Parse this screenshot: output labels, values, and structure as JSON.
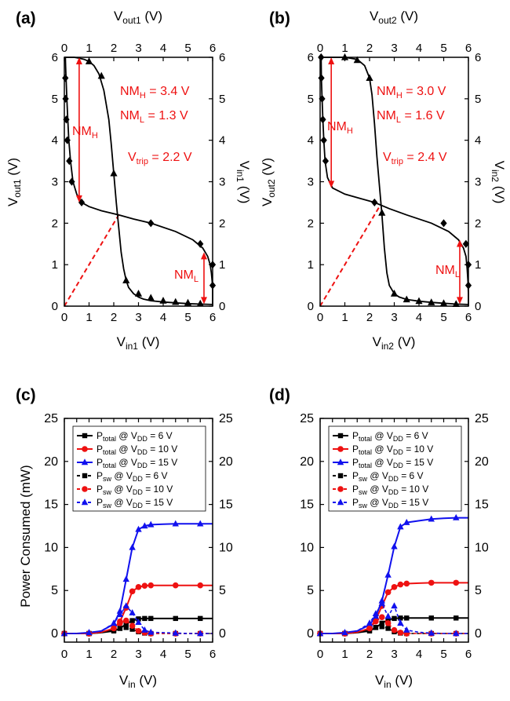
{
  "chart_data": [
    {
      "panel": "(a)",
      "type": "line",
      "xlabel": "V_in1 (V)",
      "ylabel": "V_out1 (V)",
      "top_label": "V_out1 (V)",
      "right_label": "V_in1 (V)",
      "xlim": [
        0,
        6
      ],
      "ylim": [
        0,
        6
      ],
      "ticks": [
        0,
        1,
        2,
        3,
        4,
        5,
        6
      ],
      "series": [
        {
          "role": "VTC, V_out1 vs V_in1 (triangle markers)",
          "x": [
            0.0,
            0.2,
            0.4,
            0.6,
            0.8,
            1.0,
            1.2,
            1.4,
            1.6,
            1.8,
            1.9,
            2.0,
            2.1,
            2.2,
            2.3,
            2.4,
            2.5,
            2.6,
            2.8,
            3.0,
            3.2,
            3.5,
            4.0,
            4.5,
            5.0,
            5.5,
            6.0
          ],
          "y": [
            6.0,
            6.0,
            6.0,
            5.98,
            5.95,
            5.9,
            5.8,
            5.6,
            5.2,
            4.5,
            3.9,
            3.2,
            2.5,
            1.9,
            1.3,
            0.9,
            0.62,
            0.45,
            0.3,
            0.22,
            0.17,
            0.13,
            0.1,
            0.08,
            0.06,
            0.05,
            0.04
          ],
          "markers_x": [
            1.0,
            1.5,
            2.0,
            2.5,
            3.0,
            3.5,
            4.0,
            4.5,
            5.0,
            5.5
          ],
          "markers_y": [
            5.9,
            5.55,
            3.2,
            0.62,
            0.3,
            0.2,
            0.13,
            0.1,
            0.08,
            0.06
          ]
        },
        {
          "role": "mirrored VTC (diamond markers)",
          "x": [
            6.0,
            6.0,
            6.0,
            5.98,
            5.95,
            5.9,
            5.8,
            5.6,
            5.2,
            4.5,
            3.5,
            2.8,
            2.2,
            1.5,
            1.0,
            0.7,
            0.5,
            0.35,
            0.25,
            0.18,
            0.14,
            0.1,
            0.07,
            0.05,
            0.04
          ],
          "y": [
            0.0,
            0.2,
            0.4,
            0.6,
            0.8,
            1.0,
            1.2,
            1.4,
            1.6,
            1.8,
            2.0,
            2.1,
            2.2,
            2.3,
            2.4,
            2.5,
            2.7,
            3.0,
            3.5,
            4.0,
            4.5,
            5.0,
            5.5,
            5.8,
            6.0
          ],
          "markers_x": [
            6.0,
            6.0,
            5.5,
            3.5,
            0.7,
            0.3,
            0.2,
            0.12,
            0.08,
            0.05,
            0.04
          ],
          "markers_y": [
            0.5,
            1.0,
            1.5,
            2.0,
            2.5,
            3.0,
            3.5,
            4.0,
            4.5,
            5.0,
            5.5
          ]
        }
      ],
      "trip_line": {
        "x": [
          0,
          2.2
        ],
        "y": [
          0,
          2.2
        ]
      },
      "nmh_arrow": {
        "x": 0.6,
        "y": [
          2.5,
          6.0
        ]
      },
      "nml_arrow": {
        "x": 5.65,
        "y": [
          0.05,
          1.3
        ]
      },
      "annotations": {
        "nmh": {
          "main": "NM",
          "sub": "H",
          "value": " = 3.4 V"
        },
        "nml": {
          "main": "NM",
          "sub": "L",
          "value": " = 1.3 V"
        },
        "trip": {
          "main": "V",
          "sub": "trip",
          "value": " = 2.2 V"
        },
        "nmh_tag": {
          "main": "NM",
          "sub": "H"
        },
        "nml_tag": {
          "main": "NM",
          "sub": "L"
        }
      }
    },
    {
      "panel": "(b)",
      "type": "line",
      "xlabel": "V_in2 (V)",
      "ylabel": "V_out2 (V)",
      "top_label": "V_out2 (V)",
      "right_label": "V_in2 (V)",
      "xlim": [
        0,
        6
      ],
      "ylim": [
        0,
        6
      ],
      "ticks": [
        0,
        1,
        2,
        3,
        4,
        5,
        6
      ],
      "series": [
        {
          "role": "VTC, V_out2 vs V_in2 (triangle markers)",
          "x": [
            0.0,
            0.5,
            1.0,
            1.5,
            1.8,
            2.0,
            2.1,
            2.2,
            2.3,
            2.4,
            2.5,
            2.6,
            2.7,
            2.8,
            3.0,
            3.2,
            3.5,
            4.0,
            4.5,
            5.0,
            5.5,
            6.0
          ],
          "y": [
            6.0,
            6.0,
            6.0,
            5.95,
            5.8,
            5.5,
            5.1,
            4.4,
            3.6,
            2.9,
            2.2,
            1.4,
            0.8,
            0.5,
            0.3,
            0.22,
            0.16,
            0.12,
            0.09,
            0.07,
            0.05,
            0.04
          ],
          "markers_x": [
            1.0,
            1.5,
            2.0,
            2.5,
            3.0,
            3.5,
            4.0,
            4.5,
            5.0,
            5.5
          ],
          "markers_y": [
            6.0,
            5.93,
            5.5,
            2.25,
            0.3,
            0.16,
            0.12,
            0.09,
            0.07,
            0.05
          ]
        },
        {
          "role": "mirrored VTC (diamond markers)",
          "x": [
            6.0,
            6.0,
            5.98,
            5.95,
            5.9,
            5.8,
            5.6,
            5.2,
            4.5,
            3.5,
            2.8,
            2.2,
            1.6,
            1.0,
            0.5,
            0.3,
            0.2,
            0.15,
            0.11,
            0.08,
            0.05,
            0.04
          ],
          "y": [
            0.0,
            0.3,
            0.6,
            0.9,
            1.2,
            1.4,
            1.6,
            1.8,
            2.0,
            2.2,
            2.35,
            2.5,
            2.6,
            2.7,
            2.85,
            3.1,
            3.5,
            4.0,
            4.5,
            5.0,
            5.5,
            6.0
          ],
          "markers_x": [
            6.0,
            6.0,
            5.9,
            5.0,
            2.2,
            0.22,
            0.15,
            0.11,
            0.08,
            0.05,
            0.04
          ],
          "markers_y": [
            0.5,
            1.0,
            1.5,
            2.0,
            2.5,
            3.5,
            4.0,
            4.5,
            5.0,
            5.5,
            6.0
          ]
        }
      ],
      "trip_line": {
        "x": [
          0,
          2.4
        ],
        "y": [
          0,
          2.4
        ]
      },
      "nmh_arrow": {
        "x": 0.45,
        "y": [
          2.85,
          6.0
        ]
      },
      "nml_arrow": {
        "x": 5.65,
        "y": [
          0.05,
          1.6
        ]
      },
      "annotations": {
        "nmh": {
          "main": "NM",
          "sub": "H",
          "value": " = 3.0 V"
        },
        "nml": {
          "main": "NM",
          "sub": "L",
          "value": " = 1.6 V"
        },
        "trip": {
          "main": "V",
          "sub": "trip",
          "value": " = 2.4 V"
        },
        "nmh_tag": {
          "main": "NM",
          "sub": "H"
        },
        "nml_tag": {
          "main": "NM",
          "sub": "L"
        }
      }
    },
    {
      "panel": "(c)",
      "type": "line",
      "xlabel": "V_in (V)",
      "ylabel": "Power Consumed (mW)",
      "xlim": [
        0,
        6
      ],
      "ylim": [
        -1,
        25
      ],
      "xticks": [
        0,
        0.5,
        1,
        1.5,
        2,
        2.5,
        3,
        3.5,
        4,
        4.5,
        5,
        5.5,
        6
      ],
      "xticklabels": [
        "0",
        "",
        "1",
        "",
        "2",
        "",
        "3",
        "",
        "4",
        "",
        "5",
        "",
        "6"
      ],
      "yticks": [
        0,
        5,
        10,
        15,
        20,
        25
      ],
      "x": [
        0,
        0.5,
        1.0,
        1.5,
        2.0,
        2.25,
        2.5,
        2.75,
        3.0,
        3.25,
        3.5,
        4.0,
        4.5,
        5.0,
        5.5,
        6.0
      ],
      "series": [
        {
          "name": "P_total @ V_DD = 6 V",
          "color": "#000000",
          "marker": "square",
          "dash": false,
          "values": [
            0,
            0,
            0,
            0.1,
            0.3,
            0.6,
            1.1,
            1.5,
            1.7,
            1.75,
            1.75,
            1.75,
            1.75,
            1.75,
            1.75,
            1.75
          ]
        },
        {
          "name": "P_total @ V_DD = 10 V",
          "color": "#ee1111",
          "marker": "circle",
          "dash": false,
          "values": [
            0,
            0,
            0,
            0.15,
            0.6,
            1.4,
            3.0,
            4.9,
            5.4,
            5.55,
            5.6,
            5.6,
            5.6,
            5.6,
            5.6,
            5.6
          ]
        },
        {
          "name": "P_total @ V_DD = 15 V",
          "color": "#1111ee",
          "marker": "triangle",
          "dash": false,
          "values": [
            0,
            0,
            0.1,
            0.3,
            1.1,
            2.6,
            6.3,
            10.0,
            12.1,
            12.5,
            12.65,
            12.7,
            12.75,
            12.75,
            12.75,
            12.75
          ]
        },
        {
          "name": "P_sw @ V_DD = 6 V",
          "color": "#000000",
          "marker": "square",
          "dash": true,
          "values": [
            0,
            0,
            0,
            0.1,
            0.4,
            0.6,
            0.7,
            0.5,
            0.2,
            0.05,
            0,
            0,
            0,
            0,
            0,
            0
          ]
        },
        {
          "name": "P_sw @ V_DD = 10 V",
          "color": "#ee1111",
          "marker": "circle",
          "dash": true,
          "values": [
            0,
            0,
            0,
            0.15,
            0.6,
            1.2,
            1.5,
            0.9,
            0.3,
            0.1,
            0,
            0,
            0,
            0,
            0,
            0
          ]
        },
        {
          "name": "P_sw @ V_DD = 15 V",
          "color": "#1111ee",
          "marker": "triangle",
          "dash": true,
          "values": [
            0,
            0,
            0.1,
            0.3,
            1.2,
            2.2,
            3.2,
            2.4,
            1.3,
            0.4,
            0.15,
            0.1,
            0.05,
            0,
            0,
            0
          ]
        }
      ],
      "legend": [
        {
          "main": "P",
          "sub": "total",
          "mid": " @ V",
          "sub2": "DD",
          "tail": " = 6 V"
        },
        {
          "main": "P",
          "sub": "total",
          "mid": " @ V",
          "sub2": "DD",
          "tail": " = 10 V"
        },
        {
          "main": "P",
          "sub": "total",
          "mid": " @ V",
          "sub2": "DD",
          "tail": " = 15 V"
        },
        {
          "main": "P",
          "sub": "sw",
          "mid": " @ V",
          "sub2": "DD",
          "tail": " = 6 V"
        },
        {
          "main": "P",
          "sub": "sw",
          "mid": " @ V",
          "sub2": "DD",
          "tail": " = 10 V"
        },
        {
          "main": "P",
          "sub": "sw",
          "mid": " @ V",
          "sub2": "DD",
          "tail": " = 15 V"
        }
      ]
    },
    {
      "panel": "(d)",
      "type": "line",
      "xlabel": "V_in (V)",
      "ylabel": "",
      "xlim": [
        0,
        6
      ],
      "ylim": [
        -1,
        25
      ],
      "xticks": [
        0,
        0.5,
        1,
        1.5,
        2,
        2.5,
        3,
        3.5,
        4,
        4.5,
        5,
        5.5,
        6
      ],
      "xticklabels": [
        "0",
        "",
        "1",
        "",
        "2",
        "",
        "3",
        "",
        "4",
        "",
        "5",
        "",
        "6"
      ],
      "yticks": [
        0,
        5,
        10,
        15,
        20,
        25
      ],
      "x": [
        0,
        0.5,
        1.0,
        1.5,
        2.0,
        2.25,
        2.5,
        2.75,
        3.0,
        3.25,
        3.5,
        4.0,
        4.5,
        5.0,
        5.5,
        6.0
      ],
      "series": [
        {
          "name": "P_total @ V_DD = 6 V",
          "color": "#000000",
          "marker": "square",
          "dash": false,
          "values": [
            0,
            0,
            0,
            0.1,
            0.3,
            0.7,
            1.2,
            1.6,
            1.75,
            1.8,
            1.8,
            1.8,
            1.8,
            1.8,
            1.8,
            1.8
          ]
        },
        {
          "name": "P_total @ V_DD = 10 V",
          "color": "#ee1111",
          "marker": "circle",
          "dash": false,
          "values": [
            0,
            0,
            0,
            0.15,
            0.6,
            1.6,
            3.2,
            4.8,
            5.4,
            5.7,
            5.8,
            5.85,
            5.9,
            5.9,
            5.9,
            5.9
          ]
        },
        {
          "name": "P_total @ V_DD = 15 V",
          "color": "#1111ee",
          "marker": "triangle",
          "dash": false,
          "values": [
            0,
            0,
            0.1,
            0.3,
            1.0,
            2.0,
            3.8,
            6.8,
            10.1,
            12.4,
            12.9,
            13.1,
            13.3,
            13.4,
            13.45,
            13.45
          ]
        },
        {
          "name": "P_sw @ V_DD = 6 V",
          "color": "#000000",
          "marker": "square",
          "dash": true,
          "values": [
            0,
            0,
            0,
            0.1,
            0.4,
            0.7,
            0.8,
            0.6,
            0.2,
            0.05,
            0,
            0,
            0,
            0,
            0,
            0
          ]
        },
        {
          "name": "P_sw @ V_DD = 10 V",
          "color": "#ee1111",
          "marker": "circle",
          "dash": true,
          "values": [
            0,
            0,
            0,
            0.15,
            0.6,
            1.4,
            1.9,
            1.2,
            0.4,
            0.1,
            0,
            0,
            0,
            0,
            0,
            0
          ]
        },
        {
          "name": "P_sw @ V_DD = 15 V",
          "color": "#1111ee",
          "marker": "triangle",
          "dash": true,
          "values": [
            0,
            0,
            0.1,
            0.3,
            1.2,
            2.3,
            3.5,
            2.0,
            3.2,
            1.2,
            0.4,
            0.15,
            0.05,
            0,
            0,
            0
          ]
        }
      ],
      "legend": [
        {
          "main": "P",
          "sub": "total",
          "mid": " @ V",
          "sub2": "DD",
          "tail": " = 6 V"
        },
        {
          "main": "P",
          "sub": "total",
          "mid": " @ V",
          "sub2": "DD",
          "tail": " = 10 V"
        },
        {
          "main": "P",
          "sub": "total",
          "mid": " @ V",
          "sub2": "DD",
          "tail": " = 15 V"
        },
        {
          "main": "P",
          "sub": "sw",
          "mid": " @ V",
          "sub2": "DD",
          "tail": " = 6 V"
        },
        {
          "main": "P",
          "sub": "sw",
          "mid": " @ V",
          "sub2": "DD",
          "tail": " = 10 V"
        },
        {
          "main": "P",
          "sub": "sw",
          "mid": " @ V",
          "sub2": "DD",
          "tail": " = 15 V"
        }
      ]
    }
  ],
  "labels": {
    "a": {
      "panel": "(a)",
      "top": {
        "main": "V",
        "sub": "out1",
        "tail": " (V)"
      },
      "bottom": {
        "main": "V",
        "sub": "in1",
        "tail": " (V)"
      },
      "left": {
        "main": "V",
        "sub": "out1",
        "tail": " (V)"
      },
      "right": {
        "main": "V",
        "sub": "in1",
        "tail": " (V)"
      }
    },
    "b": {
      "panel": "(b)",
      "top": {
        "main": "V",
        "sub": "out2",
        "tail": " (V)"
      },
      "bottom": {
        "main": "V",
        "sub": "in2",
        "tail": " (V)"
      },
      "left": {
        "main": "V",
        "sub": "out2",
        "tail": " (V)"
      },
      "right": {
        "main": "V",
        "sub": "in2",
        "tail": " (V)"
      }
    },
    "c": {
      "panel": "(c)",
      "bottom": {
        "main": "V",
        "sub": "in",
        "tail": " (V)"
      },
      "left": "Power Consumed (mW)"
    },
    "d": {
      "panel": "(d)",
      "bottom": {
        "main": "V",
        "sub": "in",
        "tail": " (V)"
      }
    }
  },
  "colors": {
    "annotation": "#ee1111",
    "axis": "#000000"
  }
}
